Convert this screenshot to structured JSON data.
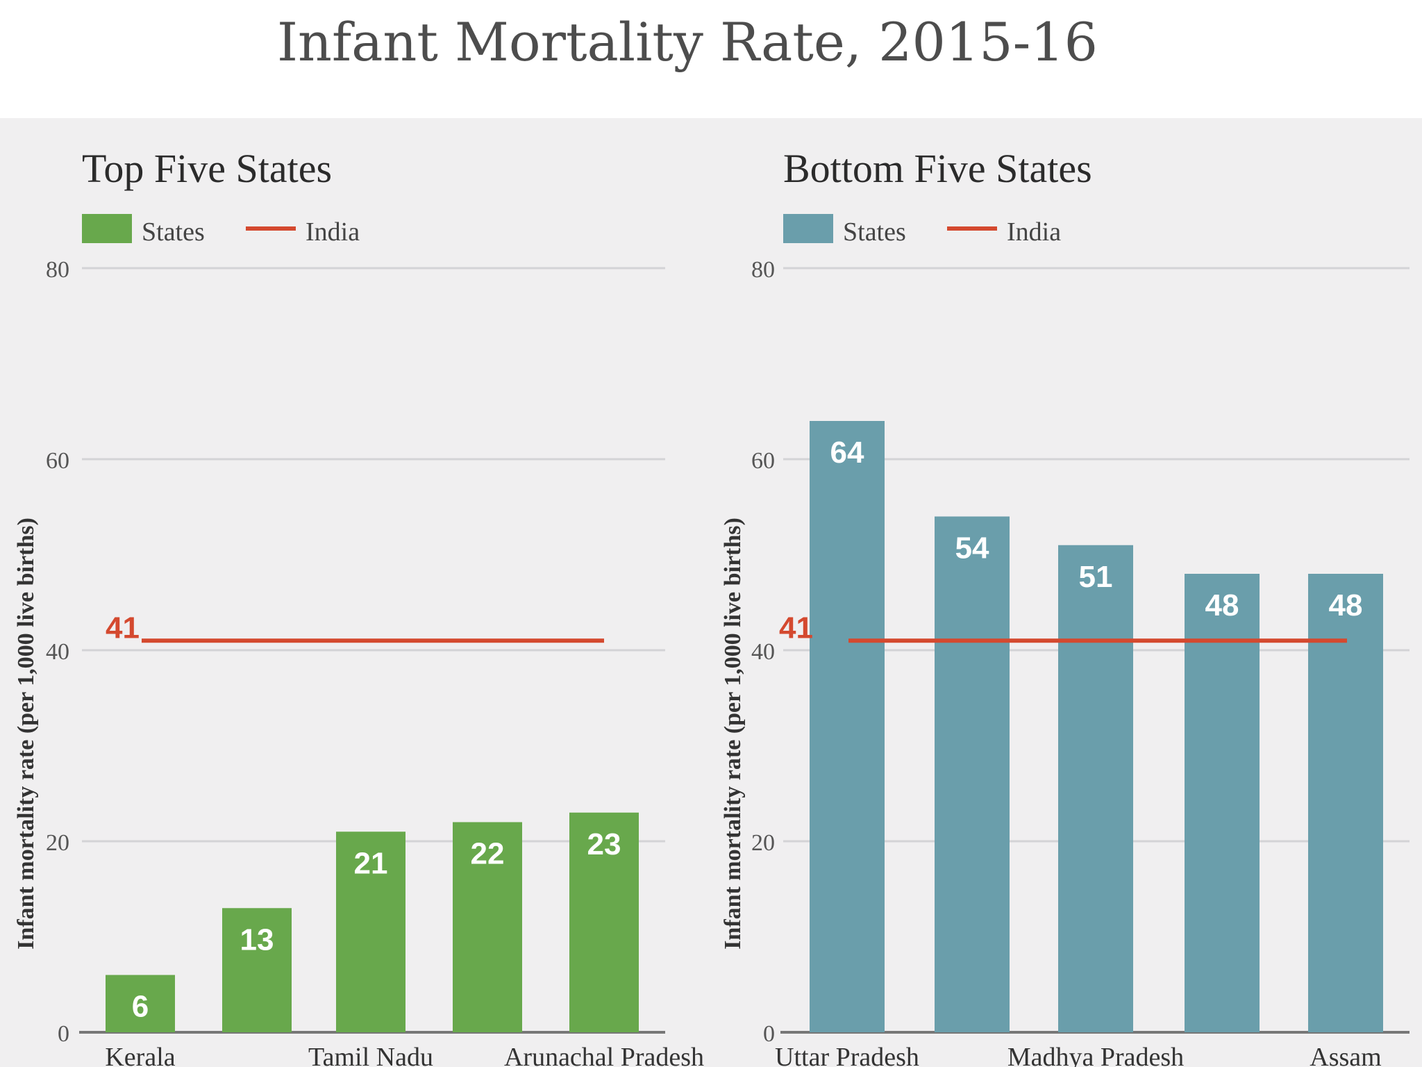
{
  "title": "Infant Mortality Rate, 2015-16",
  "chart_data": [
    {
      "type": "bar",
      "title": "Top Five States",
      "ylabel": "Infant mortality rate (per 1,000 live births)",
      "xlabel": "",
      "ylim": [
        0,
        80
      ],
      "yticks": [
        "0",
        "20",
        "40",
        "60",
        "80"
      ],
      "categories": [
        "Kerala",
        "",
        "Tamil Nadu",
        "",
        "Arunachal Pradesh"
      ],
      "values": [
        6,
        13,
        21,
        22,
        23
      ],
      "value_labels": [
        "6",
        "13",
        "21",
        "22",
        "23"
      ],
      "bar_color": "#68a84c",
      "legend": {
        "states": "States",
        "india": "India"
      },
      "reference_line": {
        "name": "India",
        "value": 41,
        "label": "41",
        "color": "#d4492f"
      }
    },
    {
      "type": "bar",
      "title": "Bottom Five States",
      "ylabel": "Infant mortality rate (per 1,000 live births)",
      "xlabel": "",
      "ylim": [
        0,
        80
      ],
      "yticks": [
        "0",
        "20",
        "40",
        "60",
        "80"
      ],
      "categories": [
        "Uttar Pradesh",
        "",
        "Madhya Pradesh",
        "",
        "Assam"
      ],
      "values": [
        64,
        54,
        51,
        48,
        48
      ],
      "value_labels": [
        "64",
        "54",
        "51",
        "48",
        "48"
      ],
      "bar_color": "#6a9eab",
      "legend": {
        "states": "States",
        "india": "India"
      },
      "reference_line": {
        "name": "India",
        "value": 41,
        "label": "41",
        "color": "#d4492f"
      }
    }
  ]
}
